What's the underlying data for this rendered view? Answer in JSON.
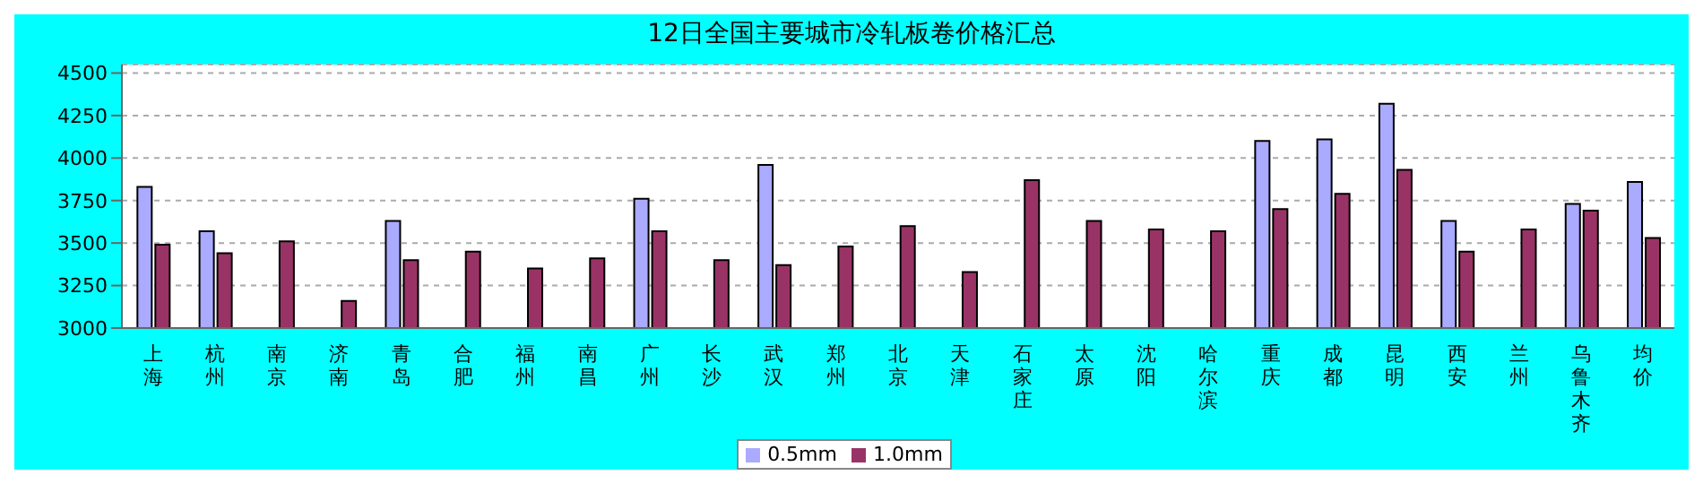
{
  "chart_data": {
    "type": "bar",
    "title": "12日全国主要城市冷轧板卷价格汇总",
    "categories": [
      "上海",
      "杭州",
      "南京",
      "济南",
      "青岛",
      "合肥",
      "福州",
      "南昌",
      "广州",
      "长沙",
      "武汉",
      "郑州",
      "北京",
      "天津",
      "石家庄",
      "太原",
      "沈阳",
      "哈尔滨",
      "重庆",
      "成都",
      "昆明",
      "西安",
      "兰州",
      "乌鲁木齐",
      "均价"
    ],
    "series": [
      {
        "name": "0.5mm",
        "color": "#aaaaff",
        "values": [
          3830,
          3570,
          null,
          null,
          3630,
          null,
          null,
          null,
          3760,
          null,
          3960,
          null,
          null,
          null,
          null,
          null,
          null,
          null,
          4100,
          4110,
          4320,
          3630,
          null,
          3730,
          3860
        ]
      },
      {
        "name": "1.0mm",
        "color": "#993366",
        "values": [
          3490,
          3440,
          3510,
          3160,
          3400,
          3450,
          3350,
          3410,
          3570,
          3400,
          3370,
          3480,
          3600,
          3330,
          3870,
          3630,
          3580,
          3570,
          3700,
          3790,
          3930,
          3450,
          3580,
          3690,
          3530
        ]
      }
    ],
    "ylim": [
      3000,
      4550
    ],
    "yticks": [
      3000,
      3250,
      3500,
      3750,
      4000,
      4250,
      4500
    ],
    "grid": "y",
    "legend": "bottom"
  }
}
